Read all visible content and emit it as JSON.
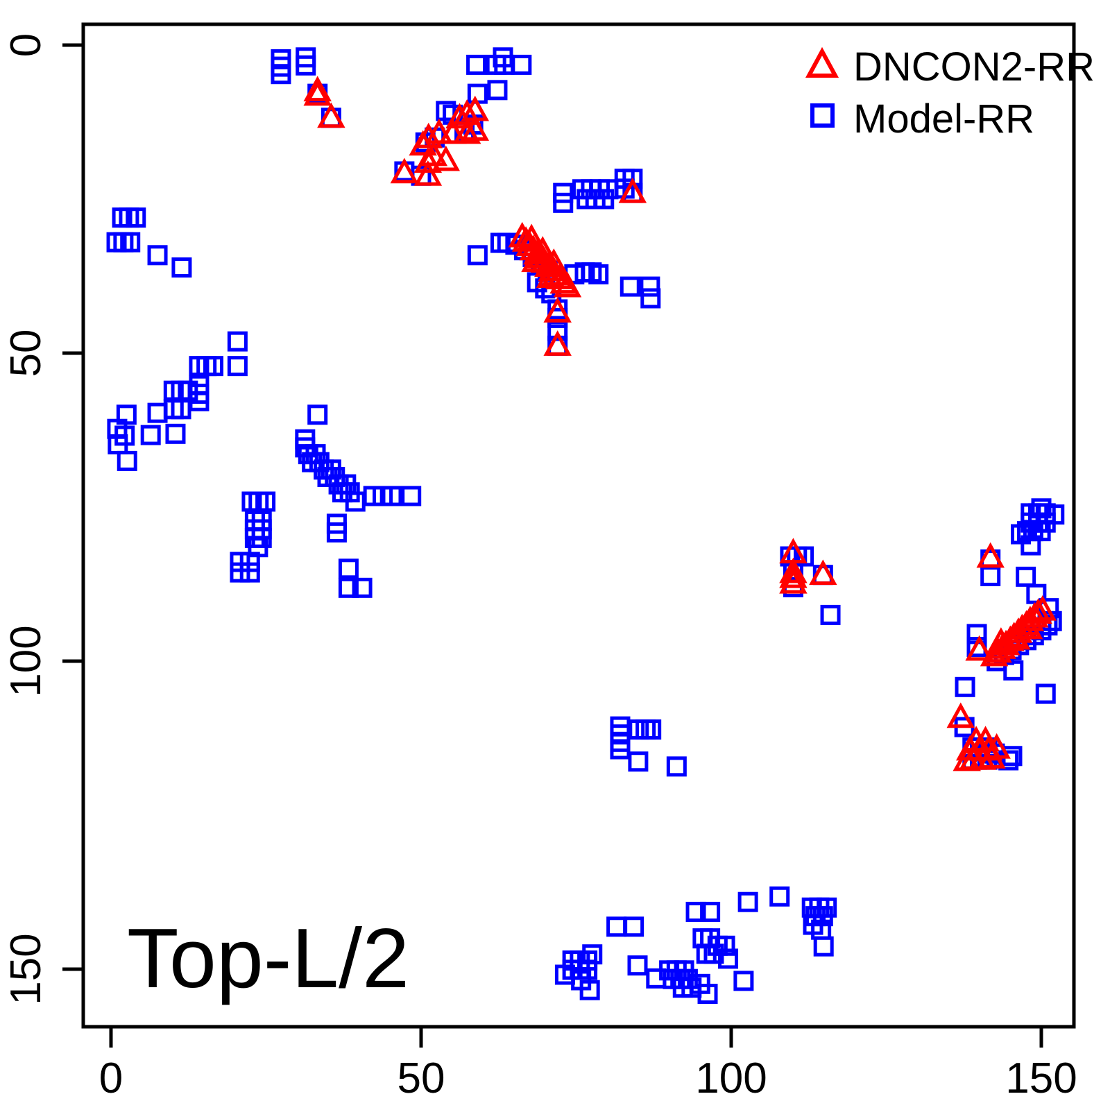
{
  "figure": {
    "annotation": "Top-L/2"
  },
  "legend": [
    {
      "label": "DNCON2-RR",
      "marker": "triangle",
      "color": "#ff0000"
    },
    {
      "label": "Model-RR",
      "marker": "square",
      "color": "#0000ff"
    }
  ],
  "axes": {
    "x_ticks": [
      0,
      50,
      100,
      150
    ],
    "y_ticks": [
      0,
      50,
      100,
      150
    ],
    "x_range": [
      -4.5,
      155.3
    ],
    "y_range": [
      -3.4,
      159.3
    ],
    "y_inverted": true,
    "grid": "off",
    "legend_position": "top-right"
  },
  "chart_data": {
    "type": "scatter",
    "title": "",
    "xlabel": "",
    "ylabel": "",
    "annotation": "Top-L/2",
    "x_axis_inverted": false,
    "y_axis_inverted": true,
    "series": [
      {
        "name": "Model-RR",
        "marker": "square",
        "color": "#0000ff",
        "points": [
          [
            27.4,
            2.3
          ],
          [
            27.4,
            3.5
          ],
          [
            27.4,
            4.7
          ],
          [
            31.4,
            2.0
          ],
          [
            31.4,
            3.3
          ],
          [
            58.9,
            3.2
          ],
          [
            62.1,
            3.2
          ],
          [
            63.2,
            2.0
          ],
          [
            63.4,
            3.2
          ],
          [
            66.2,
            3.2
          ],
          [
            59.1,
            7.9
          ],
          [
            62.3,
            7.3
          ],
          [
            33.3,
            7.9
          ],
          [
            35.5,
            11.8
          ],
          [
            54.0,
            10.7
          ],
          [
            55.1,
            11.3
          ],
          [
            58.4,
            12.9
          ],
          [
            57.0,
            13.9
          ],
          [
            52.2,
            15.0
          ],
          [
            50.7,
            15.8
          ],
          [
            47.3,
            20.5
          ],
          [
            50.0,
            21.2
          ],
          [
            72.9,
            24.0
          ],
          [
            72.9,
            25.6
          ],
          [
            76.0,
            23.4
          ],
          [
            77.4,
            23.4
          ],
          [
            78.8,
            23.4
          ],
          [
            80.2,
            23.4
          ],
          [
            76.7,
            25.0
          ],
          [
            78.1,
            25.0
          ],
          [
            79.5,
            25.0
          ],
          [
            82.8,
            21.7
          ],
          [
            84.1,
            21.7
          ],
          [
            82.8,
            23.3
          ],
          [
            84.1,
            24.0
          ],
          [
            1.8,
            28.0
          ],
          [
            2.9,
            28.0
          ],
          [
            4.0,
            28.0
          ],
          [
            0.9,
            32.0
          ],
          [
            2.0,
            32.0
          ],
          [
            3.1,
            32.0
          ],
          [
            7.5,
            34.1
          ],
          [
            11.4,
            36.1
          ],
          [
            59.1,
            34.1
          ],
          [
            62.8,
            32.1
          ],
          [
            63.9,
            32.1
          ],
          [
            65.2,
            32.4
          ],
          [
            66.6,
            33.3
          ],
          [
            68.0,
            34.4
          ],
          [
            69.3,
            35.5
          ],
          [
            70.4,
            36.6
          ],
          [
            68.7,
            38.5
          ],
          [
            70.0,
            39.5
          ],
          [
            71.0,
            40.3
          ],
          [
            74.7,
            37.2
          ],
          [
            76.4,
            36.9
          ],
          [
            77.5,
            36.9
          ],
          [
            78.6,
            37.2
          ],
          [
            83.7,
            39.2
          ],
          [
            86.9,
            39.2
          ],
          [
            87.0,
            41.1
          ],
          [
            72.0,
            42.9
          ],
          [
            72.0,
            44.3
          ],
          [
            72.0,
            46.4
          ],
          [
            72.0,
            48.8
          ],
          [
            20.4,
            48.1
          ],
          [
            20.4,
            52.1
          ],
          [
            14.2,
            52.1
          ],
          [
            15.4,
            52.1
          ],
          [
            16.5,
            52.1
          ],
          [
            10.1,
            56.1
          ],
          [
            11.3,
            56.1
          ],
          [
            12.4,
            56.1
          ],
          [
            14.2,
            55.2
          ],
          [
            14.2,
            56.6
          ],
          [
            14.2,
            57.8
          ],
          [
            10.1,
            59.1
          ],
          [
            11.3,
            59.1
          ],
          [
            2.5,
            60.0
          ],
          [
            7.5,
            59.7
          ],
          [
            1.0,
            62.3
          ],
          [
            2.2,
            63.4
          ],
          [
            1.1,
            64.8
          ],
          [
            6.4,
            63.3
          ],
          [
            10.4,
            63.1
          ],
          [
            2.6,
            67.5
          ],
          [
            33.3,
            60.0
          ],
          [
            31.3,
            64.0
          ],
          [
            31.3,
            65.3
          ],
          [
            31.8,
            66.4
          ],
          [
            33.0,
            66.4
          ],
          [
            32.4,
            67.7
          ],
          [
            33.6,
            67.7
          ],
          [
            34.3,
            68.9
          ],
          [
            35.5,
            68.9
          ],
          [
            34.9,
            70.1
          ],
          [
            36.1,
            70.1
          ],
          [
            36.7,
            71.3
          ],
          [
            37.9,
            71.3
          ],
          [
            37.3,
            72.6
          ],
          [
            38.5,
            72.6
          ],
          [
            39.4,
            74.1
          ],
          [
            42.3,
            73.2
          ],
          [
            43.8,
            73.2
          ],
          [
            45.3,
            73.2
          ],
          [
            48.4,
            73.2
          ],
          [
            36.4,
            77.7
          ],
          [
            36.4,
            79.1
          ],
          [
            22.7,
            74.1
          ],
          [
            23.8,
            74.1
          ],
          [
            24.9,
            74.1
          ],
          [
            23.2,
            77.2
          ],
          [
            24.3,
            77.2
          ],
          [
            23.2,
            78.6
          ],
          [
            24.3,
            78.6
          ],
          [
            23.2,
            80.0
          ],
          [
            24.3,
            80.0
          ],
          [
            23.7,
            81.5
          ],
          [
            20.8,
            83.9
          ],
          [
            22.4,
            83.9
          ],
          [
            20.8,
            85.6
          ],
          [
            22.4,
            85.6
          ],
          [
            38.3,
            85.0
          ],
          [
            38.3,
            88.1
          ],
          [
            40.5,
            88.1
          ],
          [
            109.5,
            83.0
          ],
          [
            110.6,
            83.0
          ],
          [
            111.7,
            83.0
          ],
          [
            110.0,
            85.7
          ],
          [
            110.0,
            88.0
          ],
          [
            114.8,
            86.0
          ],
          [
            116.0,
            92.5
          ],
          [
            150.0,
            75.2
          ],
          [
            148.3,
            76.0
          ],
          [
            149.5,
            76.0
          ],
          [
            150.7,
            76.0
          ],
          [
            152.1,
            76.2
          ],
          [
            148.3,
            77.5
          ],
          [
            149.5,
            77.5
          ],
          [
            150.7,
            77.5
          ],
          [
            147.7,
            78.9
          ],
          [
            148.7,
            78.9
          ],
          [
            149.9,
            78.9
          ],
          [
            146.7,
            79.4
          ],
          [
            148.3,
            81.2
          ],
          [
            141.8,
            83.5
          ],
          [
            141.8,
            86.2
          ],
          [
            147.5,
            86.3
          ],
          [
            149.2,
            89.1
          ],
          [
            139.6,
            95.6
          ],
          [
            139.6,
            97.7
          ],
          [
            142.8,
            100.0
          ],
          [
            144.0,
            99.0
          ],
          [
            145.2,
            98.2
          ],
          [
            146.4,
            97.4
          ],
          [
            147.6,
            96.6
          ],
          [
            148.8,
            95.8
          ],
          [
            150.0,
            95.0
          ],
          [
            151.2,
            91.4
          ],
          [
            151.7,
            93.5
          ],
          [
            151.0,
            94.2
          ],
          [
            145.5,
            101.5
          ],
          [
            137.7,
            104.2
          ],
          [
            150.7,
            105.3
          ],
          [
            137.6,
            110.7
          ],
          [
            144.7,
            116.1
          ],
          [
            145.3,
            115.4
          ],
          [
            138.9,
            114.0
          ],
          [
            140.1,
            114.0
          ],
          [
            141.3,
            114.0
          ],
          [
            138.9,
            116.0
          ],
          [
            140.1,
            116.0
          ],
          [
            141.3,
            116.0
          ],
          [
            142.5,
            115.0
          ],
          [
            82.1,
            110.6
          ],
          [
            82.1,
            111.9
          ],
          [
            82.1,
            113.1
          ],
          [
            82.1,
            114.3
          ],
          [
            85.1,
            111.1
          ],
          [
            86.2,
            111.1
          ],
          [
            87.1,
            111.1
          ],
          [
            85.0,
            116.3
          ],
          [
            91.2,
            117.1
          ],
          [
            77.6,
            147.6
          ],
          [
            74.4,
            148.6
          ],
          [
            75.6,
            148.6
          ],
          [
            76.8,
            148.6
          ],
          [
            74.4,
            150.1
          ],
          [
            75.6,
            150.1
          ],
          [
            76.8,
            150.1
          ],
          [
            73.2,
            150.9
          ],
          [
            75.8,
            151.8
          ],
          [
            77.2,
            153.4
          ],
          [
            81.5,
            143.1
          ],
          [
            84.3,
            143.1
          ],
          [
            84.9,
            149.4
          ],
          [
            87.9,
            151.5
          ],
          [
            90.0,
            150.2
          ],
          [
            91.2,
            150.2
          ],
          [
            92.4,
            150.2
          ],
          [
            90.6,
            151.6
          ],
          [
            91.8,
            151.6
          ],
          [
            93.0,
            151.6
          ],
          [
            92.2,
            153.0
          ],
          [
            93.6,
            153.0
          ],
          [
            95.0,
            152.4
          ],
          [
            96.2,
            154.0
          ],
          [
            95.4,
            145.0
          ],
          [
            96.6,
            145.0
          ],
          [
            97.8,
            146.2
          ],
          [
            99.0,
            146.2
          ],
          [
            96.0,
            147.5
          ],
          [
            97.2,
            147.5
          ],
          [
            99.5,
            148.3
          ],
          [
            94.3,
            140.7
          ],
          [
            96.6,
            140.7
          ],
          [
            102.7,
            139.1
          ],
          [
            107.8,
            138.2
          ],
          [
            102.0,
            151.9
          ],
          [
            113.0,
            140.0
          ],
          [
            114.2,
            140.0
          ],
          [
            115.4,
            140.0
          ],
          [
            113.6,
            141.4
          ],
          [
            114.8,
            141.4
          ],
          [
            113.2,
            142.8
          ],
          [
            114.5,
            143.6
          ],
          [
            114.9,
            146.3
          ]
        ]
      },
      {
        "name": "DNCON2-RR",
        "marker": "triangle",
        "color": "#ff0000",
        "points": [
          [
            33.3,
            7.5
          ],
          [
            33.3,
            8.2
          ],
          [
            35.5,
            11.8
          ],
          [
            58.7,
            10.7
          ],
          [
            57.4,
            11.3
          ],
          [
            56.2,
            11.9
          ],
          [
            58.7,
            13.9
          ],
          [
            57.4,
            14.4
          ],
          [
            55.1,
            14.4
          ],
          [
            52.9,
            14.4
          ],
          [
            51.2,
            15.1
          ],
          [
            50.3,
            16.3
          ],
          [
            52.0,
            18.0
          ],
          [
            54.0,
            18.8
          ],
          [
            51.1,
            19.1
          ],
          [
            47.3,
            20.8
          ],
          [
            51.1,
            21.2
          ],
          [
            84.1,
            24.0
          ],
          [
            66.3,
            31.2
          ],
          [
            66.9,
            31.9
          ],
          [
            67.5,
            32.6
          ],
          [
            68.1,
            33.3
          ],
          [
            68.7,
            34.0
          ],
          [
            69.3,
            34.6
          ],
          [
            69.9,
            35.3
          ],
          [
            70.5,
            36.0
          ],
          [
            71.1,
            36.7
          ],
          [
            71.7,
            37.4
          ],
          [
            72.3,
            38.0
          ],
          [
            73.0,
            38.7
          ],
          [
            73.6,
            39.3
          ],
          [
            67.8,
            31.5
          ],
          [
            69.6,
            33.5
          ],
          [
            71.4,
            35.5
          ],
          [
            68.4,
            35.2
          ],
          [
            70.8,
            37.8
          ],
          [
            72.0,
            43.4
          ],
          [
            72.0,
            48.8
          ],
          [
            110.0,
            82.5
          ],
          [
            110.0,
            85.7
          ],
          [
            110.0,
            86.5
          ],
          [
            110.0,
            87.4
          ],
          [
            114.8,
            86.0
          ],
          [
            141.8,
            83.2
          ],
          [
            142.4,
            99.2
          ],
          [
            143.0,
            98.6
          ],
          [
            143.7,
            98.0
          ],
          [
            144.3,
            97.4
          ],
          [
            145.0,
            96.7
          ],
          [
            145.6,
            96.1
          ],
          [
            146.3,
            95.4
          ],
          [
            146.9,
            94.8
          ],
          [
            147.6,
            94.2
          ],
          [
            148.2,
            93.5
          ],
          [
            148.9,
            92.9
          ],
          [
            149.5,
            92.3
          ],
          [
            150.2,
            91.8
          ],
          [
            143.5,
            97.0
          ],
          [
            146.0,
            96.5
          ],
          [
            148.0,
            94.8
          ],
          [
            140.0,
            98.3
          ],
          [
            137.0,
            109.2
          ],
          [
            139.5,
            113.0
          ],
          [
            141.0,
            113.0
          ],
          [
            138.5,
            114.5
          ],
          [
            140.0,
            114.5
          ],
          [
            141.5,
            114.5
          ],
          [
            139.0,
            116.0
          ],
          [
            140.5,
            116.0
          ],
          [
            138.0,
            116.2
          ],
          [
            142.0,
            115.8
          ],
          [
            142.8,
            114.2
          ]
        ]
      }
    ]
  },
  "layout": {
    "plot_box_color": "#000000",
    "background": "#ffffff"
  }
}
